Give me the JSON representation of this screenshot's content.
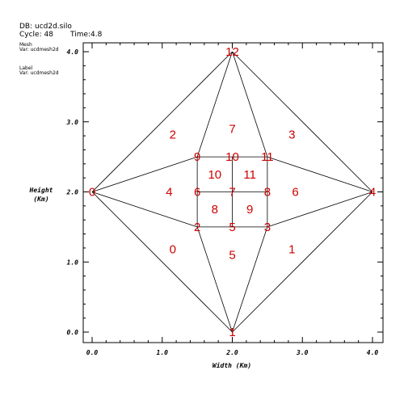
{
  "header": {
    "db": "DB: ucd2d.silo",
    "cycle": "Cycle: 48",
    "time": "Time:4.8",
    "mesh_title": "Mesh",
    "mesh_var": "Var: ucdmesh2d",
    "label_title": "Label",
    "label_var": "Var: ucdmesh2d"
  },
  "chart_data": {
    "type": "mesh",
    "xlabel": "Width (Km)",
    "ylabel_line1": "Height",
    "ylabel_line2": "(Km)",
    "xlim": [
      0.0,
      4.0
    ],
    "ylim": [
      0.0,
      4.0
    ],
    "x_ticks": [
      "0.0",
      "1.0",
      "2.0",
      "3.0",
      "4.0"
    ],
    "y_ticks": [
      "0.0",
      "1.0",
      "2.0",
      "3.0",
      "4.0"
    ],
    "label_color": "#cc0000",
    "line_color": "#000000",
    "nodes": [
      {
        "id": "0",
        "x": 0.0,
        "y": 2.0
      },
      {
        "id": "1",
        "x": 2.0,
        "y": 0.0
      },
      {
        "id": "2",
        "x": 1.5,
        "y": 1.5
      },
      {
        "id": "3",
        "x": 2.5,
        "y": 1.5
      },
      {
        "id": "4",
        "x": 4.0,
        "y": 2.0
      },
      {
        "id": "5",
        "x": 2.0,
        "y": 1.5
      },
      {
        "id": "6",
        "x": 1.5,
        "y": 2.0
      },
      {
        "id": "7",
        "x": 2.0,
        "y": 2.0
      },
      {
        "id": "8",
        "x": 2.5,
        "y": 2.0
      },
      {
        "id": "9",
        "x": 1.5,
        "y": 2.5
      },
      {
        "id": "10",
        "x": 2.0,
        "y": 2.5
      },
      {
        "id": "11",
        "x": 2.5,
        "y": 2.5
      },
      {
        "id": "12",
        "x": 2.0,
        "y": 4.0
      }
    ],
    "zones": [
      {
        "id": "0",
        "x": 1.15,
        "y": 1.18
      },
      {
        "id": "1",
        "x": 2.85,
        "y": 1.18
      },
      {
        "id": "2",
        "x": 1.15,
        "y": 2.82
      },
      {
        "id": "3",
        "x": 2.85,
        "y": 2.82
      },
      {
        "id": "4",
        "x": 1.1,
        "y": 2.0
      },
      {
        "id": "5",
        "x": 2.0,
        "y": 1.1
      },
      {
        "id": "6",
        "x": 2.9,
        "y": 2.0
      },
      {
        "id": "7",
        "x": 2.0,
        "y": 2.9
      },
      {
        "id": "8",
        "x": 1.75,
        "y": 1.75
      },
      {
        "id": "9",
        "x": 2.25,
        "y": 1.75
      },
      {
        "id": "10",
        "x": 1.75,
        "y": 2.25
      },
      {
        "id": "11",
        "x": 2.25,
        "y": 2.25
      }
    ],
    "edges": [
      [
        "0",
        "12"
      ],
      [
        "12",
        "4"
      ],
      [
        "4",
        "1"
      ],
      [
        "1",
        "0"
      ],
      [
        "0",
        "9"
      ],
      [
        "0",
        "2"
      ],
      [
        "12",
        "9"
      ],
      [
        "12",
        "11"
      ],
      [
        "4",
        "11"
      ],
      [
        "4",
        "3"
      ],
      [
        "1",
        "2"
      ],
      [
        "1",
        "3"
      ],
      [
        "9",
        "10"
      ],
      [
        "10",
        "11"
      ],
      [
        "6",
        "7"
      ],
      [
        "7",
        "8"
      ],
      [
        "2",
        "5"
      ],
      [
        "5",
        "3"
      ],
      [
        "9",
        "6"
      ],
      [
        "6",
        "2"
      ],
      [
        "10",
        "7"
      ],
      [
        "7",
        "5"
      ],
      [
        "11",
        "8"
      ],
      [
        "8",
        "3"
      ]
    ]
  }
}
